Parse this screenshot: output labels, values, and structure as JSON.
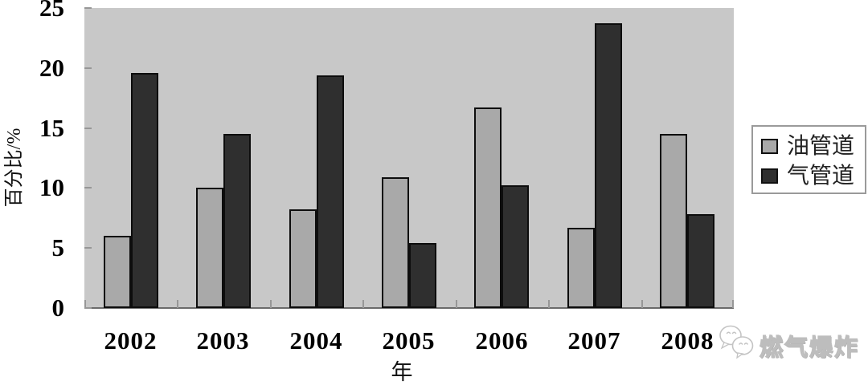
{
  "chart_data": {
    "type": "bar",
    "categories": [
      "2002",
      "2003",
      "2004",
      "2005",
      "2006",
      "2007",
      "2008"
    ],
    "series": [
      {
        "name": "油管道",
        "color": "#a9a9a9",
        "values": [
          6.0,
          10.0,
          8.2,
          10.9,
          16.7,
          6.7,
          14.5
        ]
      },
      {
        "name": "气管道",
        "color": "#2f2f2f",
        "values": [
          19.6,
          14.5,
          19.4,
          5.4,
          10.2,
          23.7,
          7.8
        ]
      }
    ],
    "title": "",
    "xlabel": "年",
    "ylabel": "百分比/%",
    "ylim": [
      0,
      25
    ],
    "yticks": [
      0,
      5,
      10,
      15,
      20,
      25
    ],
    "grid": false,
    "legend_position": "right",
    "plot_background": "#c8c8c8",
    "bar_border_color": "#0d0d0d"
  },
  "watermark": {
    "text": "燃气爆炸",
    "logo": "wechat-bubbles-logo"
  }
}
